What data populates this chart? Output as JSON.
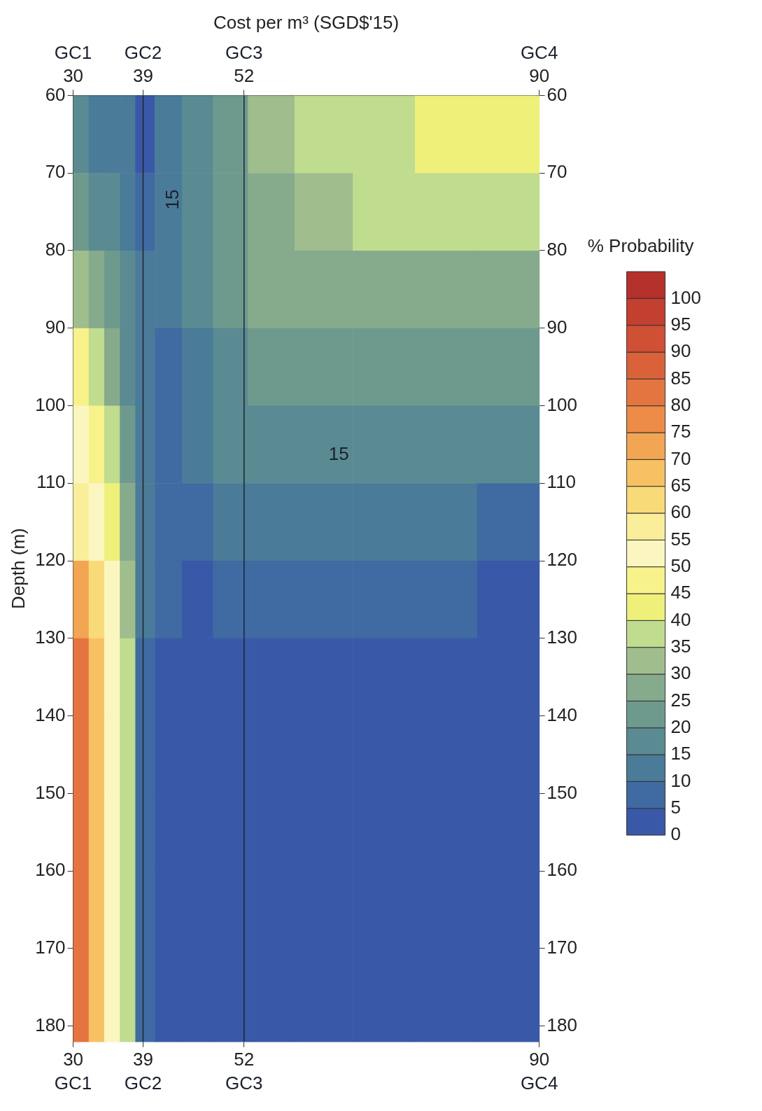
{
  "chart_data": {
    "type": "heatmap",
    "x2label": "Cost per m³ (SGD$'15)",
    "ylabel": "Depth (m)",
    "clabel": "% Probability",
    "x": [
      31,
      33,
      35,
      37,
      39,
      42,
      46,
      50,
      55,
      62,
      70,
      78,
      86
    ],
    "y": [
      65,
      75,
      85,
      95,
      105,
      115,
      125,
      135,
      145,
      155,
      165,
      175
    ],
    "cells": [
      [
        15,
        12,
        12,
        10,
        3,
        10,
        18,
        22,
        30,
        35,
        38,
        40,
        42
      ],
      [
        20,
        17,
        15,
        12,
        8,
        12,
        17,
        22,
        27,
        32,
        35,
        37,
        38
      ],
      [
        30,
        25,
        20,
        15,
        10,
        10,
        15,
        20,
        25,
        28,
        28,
        28,
        28
      ],
      [
        45,
        38,
        28,
        18,
        10,
        8,
        12,
        18,
        22,
        22,
        22,
        22,
        22
      ],
      [
        50,
        45,
        35,
        22,
        10,
        8,
        10,
        15,
        18,
        17,
        17,
        17,
        17
      ],
      [
        55,
        50,
        40,
        25,
        10,
        8,
        8,
        10,
        12,
        12,
        12,
        10,
        8
      ],
      [
        70,
        60,
        50,
        30,
        10,
        7,
        3,
        8,
        8,
        8,
        7,
        5,
        3
      ],
      [
        80,
        65,
        50,
        35,
        8,
        3,
        2,
        3,
        4,
        3,
        2,
        2,
        2
      ],
      [
        80,
        65,
        50,
        35,
        8,
        2,
        2,
        2,
        2,
        2,
        2,
        2,
        2
      ],
      [
        80,
        65,
        50,
        35,
        8,
        2,
        2,
        2,
        2,
        2,
        2,
        2,
        2
      ],
      [
        80,
        65,
        50,
        35,
        8,
        2,
        2,
        2,
        2,
        2,
        2,
        2,
        2
      ],
      [
        80,
        65,
        50,
        35,
        8,
        2,
        2,
        2,
        2,
        2,
        2,
        2,
        2
      ]
    ],
    "xlim": [
      30,
      90
    ],
    "xticks": [
      30,
      39,
      52,
      90
    ],
    "x2lim": [
      30,
      90
    ],
    "x2ticks": [
      30,
      39,
      52,
      90
    ],
    "ylim": [
      182,
      60
    ],
    "yticks": [
      60,
      70,
      80,
      90,
      100,
      110,
      120,
      130,
      140,
      150,
      160,
      170,
      180
    ],
    "y2lim": [
      182,
      60
    ],
    "y2ticks": [
      60,
      70,
      80,
      90,
      100,
      110,
      120,
      130,
      140,
      150,
      160,
      170,
      180
    ],
    "clim": [
      0,
      105
    ],
    "cticks": [
      0,
      5,
      10,
      15,
      20,
      25,
      30,
      35,
      40,
      45,
      50,
      55,
      60,
      65,
      70,
      75,
      80,
      85,
      90,
      95,
      100
    ],
    "ref_lines": [
      {
        "axis": "x",
        "value": 39
      },
      {
        "axis": "x",
        "value": 52
      }
    ],
    "annotations": [
      "15",
      "15",
      "GC1",
      "GC2",
      "GC3",
      "GC4"
    ],
    "grid": false
  }
}
